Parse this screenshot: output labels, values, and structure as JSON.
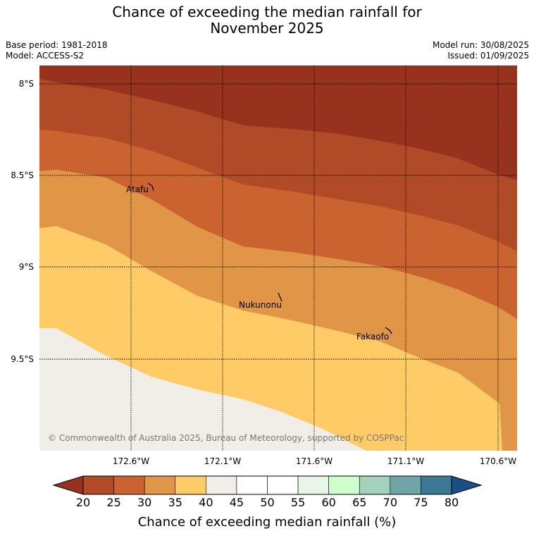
{
  "header": {
    "title_line1": "Chance of exceeding the median rainfall for",
    "title_line2": "November 2025",
    "base_period": "Base period: 1981-2018",
    "model": "Model: ACCESS-S2",
    "model_run": "Model run: 30/08/2025",
    "issued": "Issued: 01/09/2025"
  },
  "map": {
    "lat_labels": [
      "8°S",
      "8.5°S",
      "9°S",
      "9.5°S"
    ],
    "lon_labels": [
      "172.6°W",
      "172.1°W",
      "171.6°W",
      "171.1°W",
      "170.6°W"
    ],
    "places": [
      "Atafu",
      "Nukunonu",
      "Fakaofo"
    ],
    "copyright": "© Commonwealth of Australia 2025, Bureau of Meteorology, supported by COSPPac",
    "band_colors": [
      "#96321e",
      "#b14a27",
      "#cb6331",
      "#e19647",
      "#fecb67",
      "#f1ede7"
    ]
  },
  "colorbar": {
    "ticks": [
      "20",
      "25",
      "30",
      "35",
      "40",
      "45",
      "50",
      "55",
      "60",
      "65",
      "70",
      "75",
      "80"
    ],
    "colors": [
      "#b14a27",
      "#cb6331",
      "#e19647",
      "#fecb67",
      "#f1ede7",
      "#ffffff",
      "#ffffff",
      "#eaf5ea",
      "#ccffcc",
      "#a1d2bb",
      "#6fa5a6",
      "#3d7796"
    ],
    "under_color": "#96321e",
    "over_color": "#1a4e84",
    "title": "Chance of exceeding median rainfall (%)"
  }
}
